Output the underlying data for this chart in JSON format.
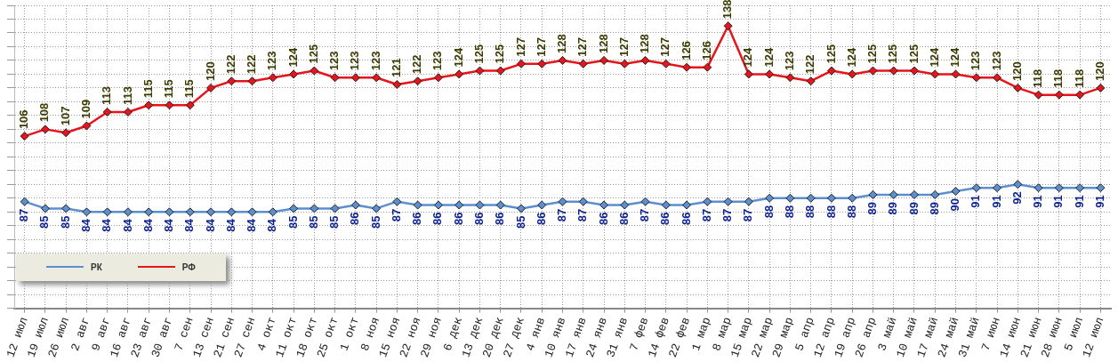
{
  "chart_data": {
    "type": "line",
    "categories": [
      "12 июл",
      "19 июл",
      "26 июл",
      "2 авг",
      "9 авг",
      "16 авг",
      "23 авг",
      "30 авг",
      "7 сен",
      "13 сен",
      "21 сен",
      "27 сен",
      "4 окт",
      "11 окт",
      "18 окт",
      "25 окт",
      "1 окт",
      "8 ноя",
      "15 ноя",
      "22 ноя",
      "29 ноя",
      "6 дек",
      "13 дек",
      "20 дек",
      "27 дек",
      "4 янв",
      "10 янв",
      "17 янв",
      "24 янв",
      "31 янв",
      "7 фев",
      "14 фев",
      "22 фев",
      "1 мар",
      "8 мар",
      "15 мар",
      "22 мар",
      "29 мар",
      "5 апр",
      "12 апр",
      "19 апр",
      "26 апр",
      "3 май",
      "10 май",
      "17 май",
      "24 май",
      "31 май",
      "7 июн",
      "14 июн",
      "21 июн",
      "28 июн",
      "5 июл",
      "12 июл"
    ],
    "series": [
      {
        "name": "РК",
        "color": "#5b8fd0",
        "values": [
          87,
          85,
          85,
          84,
          84,
          84,
          84,
          84,
          84,
          84,
          84,
          84,
          84,
          85,
          85,
          85,
          86,
          85,
          87,
          86,
          86,
          86,
          86,
          86,
          85,
          86,
          87,
          87,
          86,
          86,
          87,
          86,
          86,
          87,
          87,
          87,
          88,
          88,
          88,
          88,
          88,
          89,
          89,
          89,
          89,
          90,
          91,
          91,
          92,
          91,
          91,
          91,
          91
        ]
      },
      {
        "name": "РФ",
        "color": "#e8141b",
        "values": [
          106,
          108,
          107,
          109,
          113,
          113,
          115,
          115,
          115,
          120,
          122,
          122,
          123,
          124,
          125,
          123,
          123,
          123,
          121,
          122,
          123,
          124,
          125,
          125,
          127,
          127,
          128,
          127,
          128,
          127,
          128,
          127,
          126,
          126,
          138,
          124,
          124,
          123,
          122,
          125,
          124,
          125,
          125,
          125,
          124,
          124,
          123,
          123,
          120,
          118,
          118,
          118,
          120
        ]
      }
    ],
    "ylim": [
      56,
      144
    ],
    "yticks": [
      {
        "value": 56,
        "label": null
      },
      {
        "value": 60,
        "label": null
      },
      {
        "value": 64,
        "label": null
      },
      {
        "value": 68,
        "label": null
      },
      {
        "value": 72,
        "label": null
      },
      {
        "value": 76,
        "label": null
      },
      {
        "value": 80,
        "label": null
      },
      {
        "value": 84,
        "label": null
      },
      {
        "value": 88,
        "label": null
      },
      {
        "value": 92,
        "label": null
      },
      {
        "value": 96,
        "label": null
      },
      {
        "value": 100,
        "label": null
      },
      {
        "value": 104,
        "label": null
      },
      {
        "value": 108,
        "label": null
      },
      {
        "value": 112,
        "label": null
      },
      {
        "value": 116,
        "label": null
      },
      {
        "value": 120,
        "label": null
      },
      {
        "value": 124,
        "label": null
      },
      {
        "value": 128,
        "label": null
      },
      {
        "value": 132,
        "label": null
      },
      {
        "value": 136,
        "label": null
      },
      {
        "value": 140,
        "label": null
      },
      {
        "value": 144,
        "label": null
      }
    ],
    "tick_labels": "x",
    "grid": true,
    "legend": "bottom left",
    "marker": "diamond",
    "line_style": "solid",
    "data_labels": true
  }
}
